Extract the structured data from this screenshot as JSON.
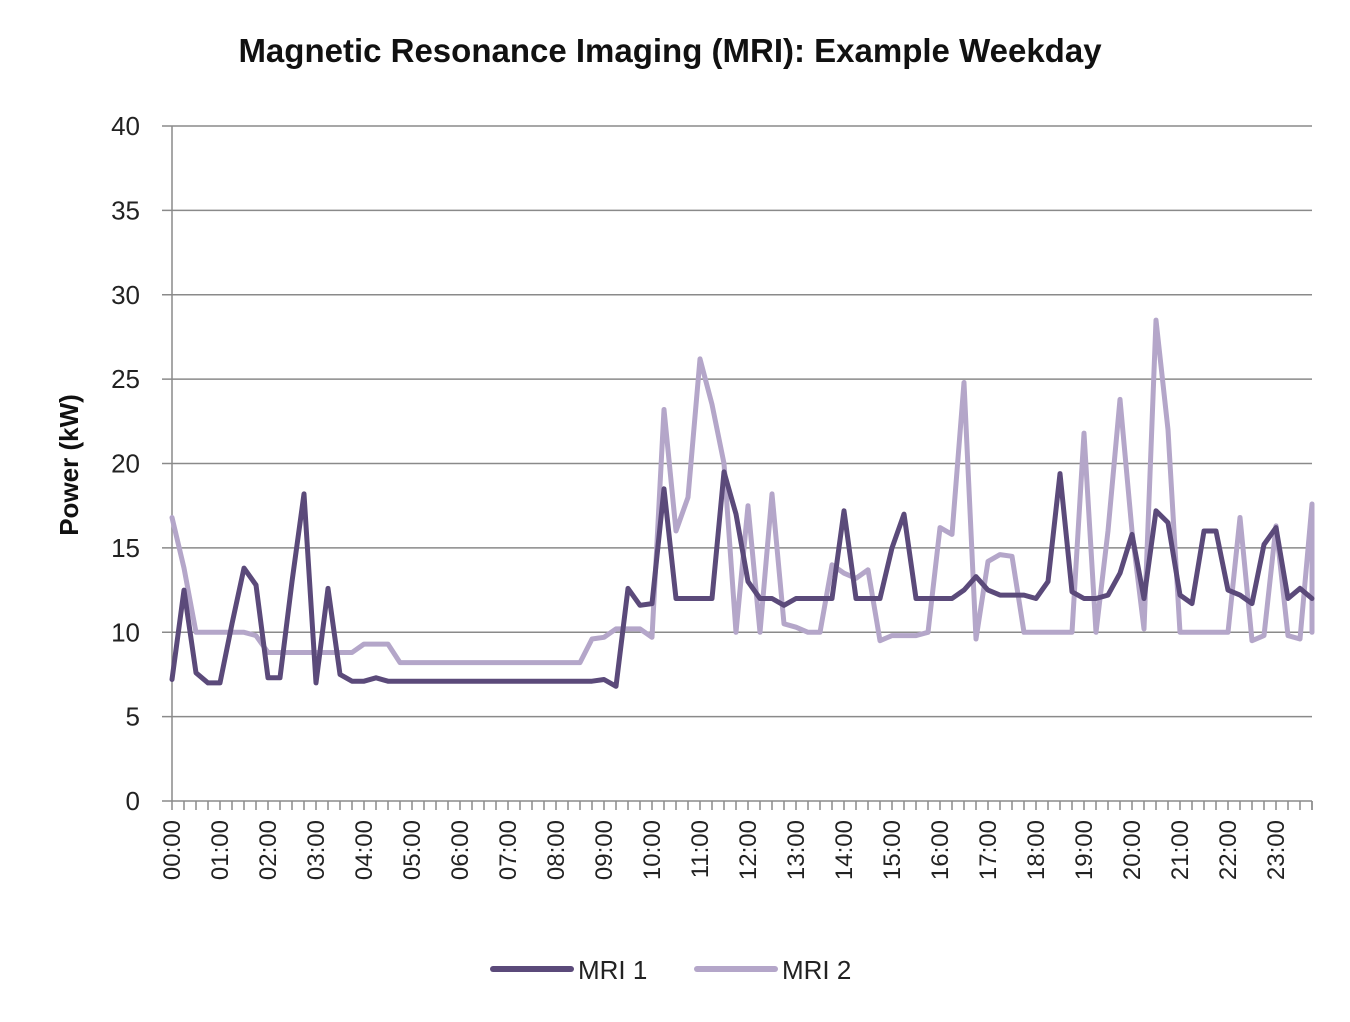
{
  "chart_data": {
    "type": "line",
    "title": "Magnetic Resonance Imaging (MRI): Example Weekday",
    "xlabel": "",
    "ylabel": "Power (kW)",
    "ylim": [
      0,
      40
    ],
    "yticks": [
      0,
      5,
      10,
      15,
      20,
      25,
      30,
      35,
      40
    ],
    "xlim": [
      0,
      23.75
    ],
    "x_tick_labels": [
      "00:00",
      "01:00",
      "02:00",
      "03:00",
      "04:00",
      "05:00",
      "06:00",
      "07:00",
      "08:00",
      "09:00",
      "10:00",
      "11:00",
      "12:00",
      "13:00",
      "14:00",
      "15:00",
      "16:00",
      "17:00",
      "18:00",
      "19:00",
      "20:00",
      "21:00",
      "22:00",
      "23:00"
    ],
    "grid": true,
    "legend": "bottom",
    "series": [
      {
        "name": "MRI 1",
        "color": "#5b4a7a",
        "points": [
          [
            0.0,
            7.2
          ],
          [
            0.25,
            12.5
          ],
          [
            0.5,
            7.6
          ],
          [
            0.75,
            7.0
          ],
          [
            1.0,
            7.0
          ],
          [
            1.25,
            10.5
          ],
          [
            1.5,
            13.8
          ],
          [
            1.75,
            12.8
          ],
          [
            2.0,
            7.3
          ],
          [
            2.25,
            7.3
          ],
          [
            2.5,
            13.0
          ],
          [
            2.75,
            18.2
          ],
          [
            3.0,
            7.0
          ],
          [
            3.25,
            12.6
          ],
          [
            3.5,
            7.5
          ],
          [
            3.75,
            7.1
          ],
          [
            4.0,
            7.1
          ],
          [
            4.25,
            7.3
          ],
          [
            4.5,
            7.1
          ],
          [
            5.0,
            7.1
          ],
          [
            6.0,
            7.1
          ],
          [
            7.0,
            7.1
          ],
          [
            8.0,
            7.1
          ],
          [
            8.75,
            7.1
          ],
          [
            9.0,
            7.2
          ],
          [
            9.25,
            6.8
          ],
          [
            9.5,
            12.6
          ],
          [
            9.75,
            11.6
          ],
          [
            10.0,
            11.7
          ],
          [
            10.25,
            18.5
          ],
          [
            10.5,
            12.0
          ],
          [
            10.75,
            12.0
          ],
          [
            11.0,
            12.0
          ],
          [
            11.25,
            12.0
          ],
          [
            11.5,
            19.5
          ],
          [
            11.75,
            17.0
          ],
          [
            12.0,
            13.0
          ],
          [
            12.25,
            12.0
          ],
          [
            12.5,
            12.0
          ],
          [
            12.75,
            11.6
          ],
          [
            13.0,
            12.0
          ],
          [
            13.25,
            12.0
          ],
          [
            13.5,
            12.0
          ],
          [
            13.75,
            12.0
          ],
          [
            14.0,
            17.2
          ],
          [
            14.25,
            12.0
          ],
          [
            14.5,
            12.0
          ],
          [
            14.75,
            12.0
          ],
          [
            15.0,
            15.0
          ],
          [
            15.25,
            17.0
          ],
          [
            15.5,
            12.0
          ],
          [
            15.75,
            12.0
          ],
          [
            16.0,
            12.0
          ],
          [
            16.25,
            12.0
          ],
          [
            16.5,
            12.5
          ],
          [
            16.75,
            13.3
          ],
          [
            17.0,
            12.5
          ],
          [
            17.25,
            12.2
          ],
          [
            17.5,
            12.2
          ],
          [
            17.75,
            12.2
          ],
          [
            18.0,
            12.0
          ],
          [
            18.25,
            13.0
          ],
          [
            18.5,
            19.4
          ],
          [
            18.75,
            12.4
          ],
          [
            19.0,
            12.0
          ],
          [
            19.25,
            12.0
          ],
          [
            19.5,
            12.2
          ],
          [
            19.75,
            13.5
          ],
          [
            20.0,
            15.8
          ],
          [
            20.25,
            12.0
          ],
          [
            20.5,
            17.2
          ],
          [
            20.75,
            16.5
          ],
          [
            21.0,
            12.2
          ],
          [
            21.25,
            11.7
          ],
          [
            21.5,
            16.0
          ],
          [
            21.75,
            16.0
          ],
          [
            22.0,
            12.5
          ],
          [
            22.25,
            12.2
          ],
          [
            22.5,
            11.7
          ],
          [
            22.75,
            15.2
          ],
          [
            23.0,
            16.2
          ],
          [
            23.25,
            12.0
          ],
          [
            23.5,
            12.6
          ],
          [
            23.75,
            12.0
          ]
        ]
      },
      {
        "name": "MRI 2",
        "color": "#b4a6c9",
        "points": [
          [
            0.0,
            16.8
          ],
          [
            0.25,
            13.8
          ],
          [
            0.5,
            10.0
          ],
          [
            0.75,
            10.0
          ],
          [
            1.0,
            10.0
          ],
          [
            1.25,
            10.0
          ],
          [
            1.5,
            10.0
          ],
          [
            1.75,
            9.8
          ],
          [
            2.0,
            8.8
          ],
          [
            2.25,
            8.8
          ],
          [
            2.5,
            8.8
          ],
          [
            2.75,
            8.8
          ],
          [
            3.0,
            8.8
          ],
          [
            3.25,
            8.8
          ],
          [
            3.5,
            8.8
          ],
          [
            3.75,
            8.8
          ],
          [
            4.0,
            9.3
          ],
          [
            4.25,
            9.3
          ],
          [
            4.5,
            9.3
          ],
          [
            4.75,
            8.2
          ],
          [
            5.0,
            8.2
          ],
          [
            6.0,
            8.2
          ],
          [
            7.0,
            8.2
          ],
          [
            8.0,
            8.2
          ],
          [
            8.5,
            8.2
          ],
          [
            8.75,
            9.6
          ],
          [
            9.0,
            9.7
          ],
          [
            9.25,
            10.2
          ],
          [
            9.5,
            10.2
          ],
          [
            9.75,
            10.2
          ],
          [
            10.0,
            9.7
          ],
          [
            10.25,
            23.2
          ],
          [
            10.5,
            16.0
          ],
          [
            10.75,
            18.0
          ],
          [
            11.0,
            26.2
          ],
          [
            11.25,
            23.5
          ],
          [
            11.5,
            20.0
          ],
          [
            11.75,
            10.0
          ],
          [
            12.0,
            17.5
          ],
          [
            12.25,
            10.0
          ],
          [
            12.5,
            18.2
          ],
          [
            12.75,
            10.5
          ],
          [
            13.0,
            10.3
          ],
          [
            13.25,
            10.0
          ],
          [
            13.5,
            10.0
          ],
          [
            13.75,
            14.0
          ],
          [
            14.0,
            13.5
          ],
          [
            14.25,
            13.2
          ],
          [
            14.5,
            13.7
          ],
          [
            14.75,
            9.5
          ],
          [
            15.0,
            9.8
          ],
          [
            15.25,
            9.8
          ],
          [
            15.5,
            9.8
          ],
          [
            15.75,
            10.0
          ],
          [
            16.0,
            16.2
          ],
          [
            16.25,
            15.8
          ],
          [
            16.5,
            24.8
          ],
          [
            16.75,
            9.6
          ],
          [
            17.0,
            14.2
          ],
          [
            17.25,
            14.6
          ],
          [
            17.5,
            14.5
          ],
          [
            17.75,
            10.0
          ],
          [
            18.0,
            10.0
          ],
          [
            18.25,
            10.0
          ],
          [
            18.5,
            10.0
          ],
          [
            18.75,
            10.0
          ],
          [
            19.0,
            21.8
          ],
          [
            19.25,
            10.0
          ],
          [
            19.5,
            16.0
          ],
          [
            19.75,
            23.8
          ],
          [
            20.0,
            16.0
          ],
          [
            20.25,
            10.2
          ],
          [
            20.5,
            28.5
          ],
          [
            20.75,
            22.0
          ],
          [
            21.0,
            10.0
          ],
          [
            21.25,
            10.0
          ],
          [
            21.5,
            10.0
          ],
          [
            21.75,
            10.0
          ],
          [
            22.0,
            10.0
          ],
          [
            22.25,
            16.8
          ],
          [
            22.5,
            9.5
          ],
          [
            22.75,
            9.8
          ],
          [
            23.0,
            16.3
          ],
          [
            23.25,
            9.8
          ],
          [
            23.5,
            9.6
          ],
          [
            23.75,
            17.6
          ],
          [
            24.0,
            10.0
          ]
        ]
      }
    ]
  }
}
